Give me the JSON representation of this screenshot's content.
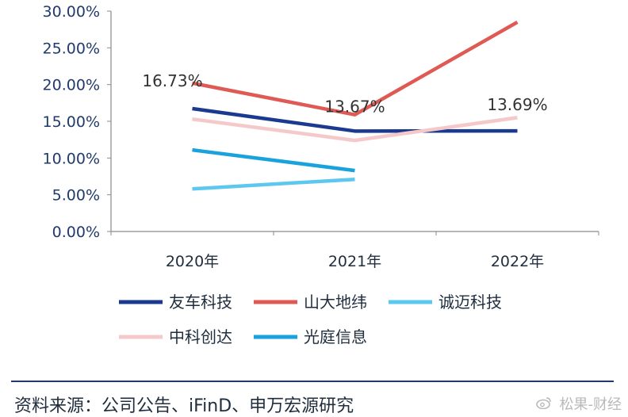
{
  "chart_data": {
    "type": "line",
    "title": "",
    "xlabel": "",
    "ylabel": "",
    "categories": [
      "2020年",
      "2021年",
      "2022年"
    ],
    "ylim": [
      0,
      30
    ],
    "yticks": [
      "0.00%",
      "5.00%",
      "10.00%",
      "15.00%",
      "20.00%",
      "25.00%",
      "30.00%"
    ],
    "grid": false,
    "legend_position": "bottom",
    "series": [
      {
        "name": "友车科技",
        "color": "#1a3a8f",
        "values": [
          16.73,
          13.67,
          13.69
        ]
      },
      {
        "name": "山大地纬",
        "color": "#e05a55",
        "values": [
          20.2,
          15.9,
          28.5
        ]
      },
      {
        "name": "诚迈科技",
        "color": "#5cc8ef",
        "values": [
          5.8,
          7.1,
          null
        ]
      },
      {
        "name": "中科创达",
        "color": "#f5c9c9",
        "values": [
          15.3,
          12.4,
          15.5
        ]
      },
      {
        "name": "光庭信息",
        "color": "#1aa2dc",
        "values": [
          11.1,
          8.3,
          null
        ]
      }
    ],
    "annotations": [
      {
        "text": "16.73%",
        "category": "2020年",
        "value": 16.73
      },
      {
        "text": "13.67%",
        "category": "2021年",
        "value": 13.67
      },
      {
        "text": "13.69%",
        "category": "2022年",
        "value": 13.69
      }
    ]
  },
  "source": {
    "text": "资料来源：公司公告、iFinD、申万宏源研究"
  },
  "watermark": {
    "text": "松果-财经"
  }
}
